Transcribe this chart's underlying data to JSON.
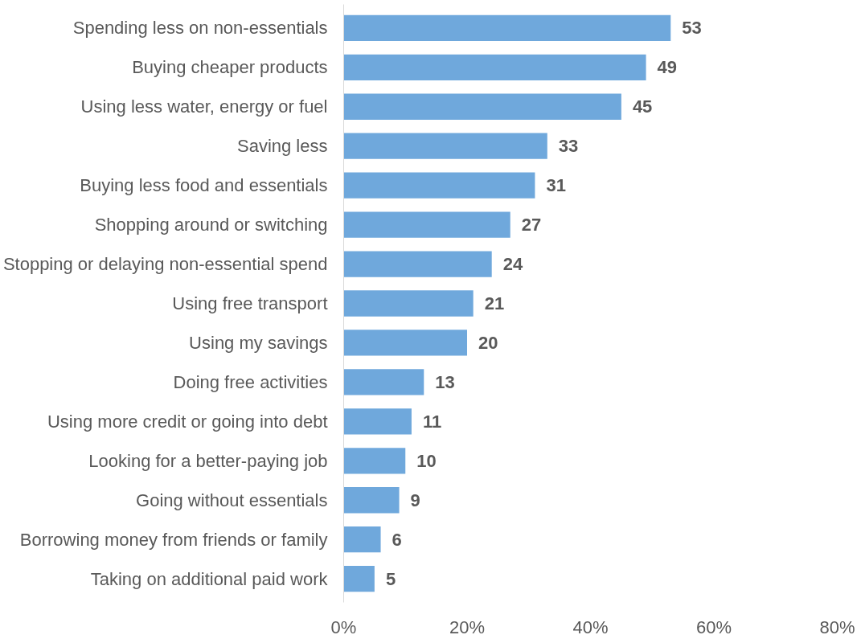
{
  "chart_data": {
    "type": "bar",
    "orientation": "horizontal",
    "categories": [
      "Spending less on non-essentials",
      "Buying cheaper products",
      "Using less water, energy or fuel",
      "Saving less",
      "Buying less food and essentials",
      "Shopping around or switching",
      "Stopping or delaying non-essential spend",
      "Using free transport",
      "Using my savings",
      "Doing free activities",
      "Using more credit or going into debt",
      "Looking for a better-paying job",
      "Going without essentials",
      "Borrowing money from friends or family",
      "Taking on additional paid work"
    ],
    "values": [
      53,
      49,
      45,
      33,
      31,
      27,
      24,
      21,
      20,
      13,
      11,
      10,
      9,
      6,
      5
    ],
    "color": "#6fa8dc",
    "xlim": [
      0,
      80
    ],
    "xticks": [
      {
        "value": 0,
        "label": "0%"
      },
      {
        "value": 20,
        "label": "20%"
      },
      {
        "value": 40,
        "label": "40%"
      },
      {
        "value": 60,
        "label": "60%"
      },
      {
        "value": 80,
        "label": "80%"
      }
    ],
    "data_labels": true
  }
}
